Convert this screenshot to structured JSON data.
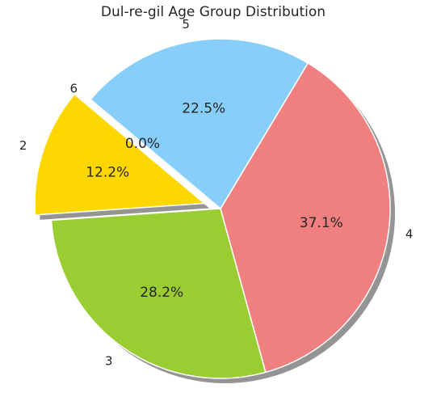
{
  "chart_data": {
    "type": "pie",
    "title": "Dul-re-gil Age Group Distribution",
    "slices": [
      {
        "label": "2",
        "value": 12.2,
        "pct_label": "12.2%",
        "color": "#ffd700",
        "exploded": true
      },
      {
        "label": "3",
        "value": 28.2,
        "pct_label": "28.2%",
        "color": "#9acd32",
        "exploded": false
      },
      {
        "label": "4",
        "value": 37.1,
        "pct_label": "37.1%",
        "color": "#f08080",
        "exploded": false
      },
      {
        "label": "5",
        "value": 22.5,
        "pct_label": "22.5%",
        "color": "#87cefa",
        "exploded": false
      },
      {
        "label": "6",
        "value": 0.0,
        "pct_label": "0.0%",
        "color": "#ffa07a",
        "exploded": false
      }
    ],
    "start_angle_deg": 140,
    "direction": "counterclockwise",
    "shadow": true,
    "legend": "none"
  }
}
